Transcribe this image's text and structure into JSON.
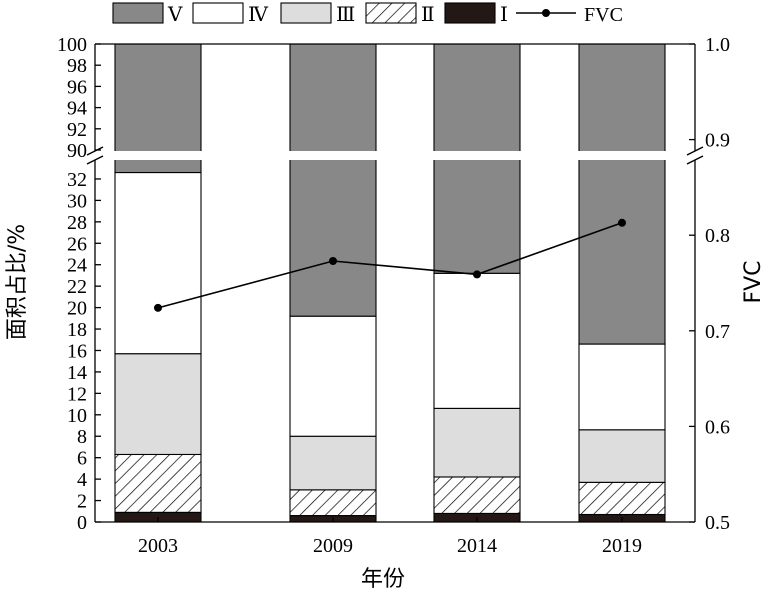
{
  "chart_data": {
    "type": "bar",
    "stacked": true,
    "categories": [
      "2003",
      "2009",
      "2014",
      "2019"
    ],
    "xlabel": "年份",
    "ylabel": "面积占比/%",
    "y2label": "FVC",
    "y_lower_range": [
      0,
      33
    ],
    "y_upper_range": [
      90,
      100
    ],
    "y_lower_ticks": [
      "0",
      "2",
      "4",
      "6",
      "8",
      "10",
      "12",
      "14",
      "16",
      "18",
      "20",
      "22",
      "24",
      "26",
      "28",
      "30",
      "32"
    ],
    "y_upper_ticks": [
      "90",
      "92",
      "94",
      "96",
      "98",
      "100"
    ],
    "y2_range": [
      0.5,
      1.0
    ],
    "y2_ticks": [
      "0.5",
      "0.6",
      "0.7",
      "0.8",
      "0.9",
      "1.0"
    ],
    "axis_break": true,
    "legend_position": "top",
    "series": [
      {
        "name": "Ⅰ",
        "values": [
          0.9,
          0.6,
          0.8,
          0.7
        ],
        "color": "#231815",
        "pattern": "solid"
      },
      {
        "name": "Ⅱ",
        "values": [
          5.4,
          2.4,
          3.4,
          3.0
        ],
        "color": "#ffffff",
        "pattern": "hatch"
      },
      {
        "name": "Ⅲ",
        "values": [
          9.4,
          5.0,
          6.4,
          4.9
        ],
        "color": "#dddddd",
        "pattern": "solid"
      },
      {
        "name": "Ⅳ",
        "values": [
          16.9,
          11.2,
          12.6,
          8.0
        ],
        "color": "#ffffff",
        "pattern": "solid"
      },
      {
        "name": "Ⅴ",
        "values": [
          67.4,
          80.8,
          76.8,
          83.4
        ],
        "color": "#888888",
        "pattern": "solid"
      }
    ],
    "line_series": {
      "name": "FVC",
      "axis": "right",
      "values": [
        0.724,
        0.773,
        0.759,
        0.813
      ]
    },
    "legend_order": [
      "Ⅴ",
      "Ⅳ",
      "Ⅲ",
      "Ⅱ",
      "Ⅰ",
      "FVC"
    ]
  }
}
